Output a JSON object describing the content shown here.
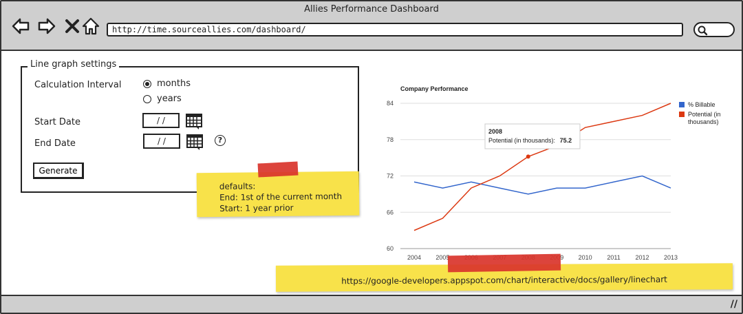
{
  "window": {
    "title": "Allies Performance Dashboard",
    "url": "http://time.sourceallies.com/dashboard/"
  },
  "nav": {
    "back_icon": "back-arrow-icon",
    "forward_icon": "forward-arrow-icon",
    "close_icon": "close-icon",
    "home_icon": "home-icon",
    "search_icon": "search-icon"
  },
  "settings": {
    "legend": "Line graph settings",
    "calc_interval_label": "Calculation Interval",
    "interval_options": [
      {
        "label": "months",
        "selected": true
      },
      {
        "label": "years",
        "selected": false
      }
    ],
    "start_date_label": "Start Date",
    "end_date_label": "End Date",
    "start_date_value": "/ /",
    "end_date_value": "/ /",
    "help_label": "?",
    "generate_label": "Generate"
  },
  "notes": {
    "defaults_title": "defaults:",
    "defaults_end": "End: 1st of the current month",
    "defaults_start": "Start:  1 year prior",
    "link": "https://google-developers.appspot.com/chart/interactive/docs/gallery/linechart"
  },
  "chart_data": {
    "type": "line",
    "title": "Company Performance",
    "x": [
      2004,
      2005,
      2006,
      2007,
      2008,
      2009,
      2010,
      2011,
      2012,
      2013
    ],
    "x_tick_labels": [
      "2004",
      "2005",
      "2006",
      "2007",
      "2008",
      "2009",
      "2010",
      "2011",
      "2012",
      "2013"
    ],
    "y_ticks": [
      60,
      66,
      72,
      78,
      84
    ],
    "ylim": [
      60,
      84
    ],
    "series": [
      {
        "name": "% Billable",
        "color": "#3366cc",
        "values": [
          71,
          70,
          71,
          70,
          69,
          70,
          70,
          71,
          72,
          70
        ]
      },
      {
        "name": "Potential (in thousands)",
        "color": "#dc3912",
        "values": [
          63,
          65,
          70,
          72,
          75.2,
          77,
          80,
          81,
          82,
          84
        ]
      }
    ],
    "legend_position": "right",
    "tooltip": {
      "title": "2008",
      "label": "Potential (in thousands):",
      "value": "75.2"
    }
  },
  "colors": {
    "sticky": "#f8e24a",
    "tape": "#d9342b",
    "chrome": "#cfcfcf"
  }
}
